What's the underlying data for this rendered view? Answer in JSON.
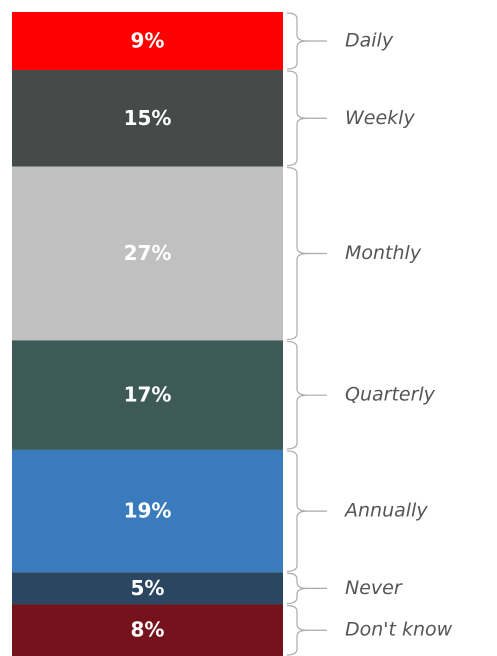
{
  "chart_data": {
    "type": "bar",
    "stacked": true,
    "categories": [
      "Daily",
      "Weekly",
      "Monthly",
      "Quarterly",
      "Annually",
      "Never",
      "Don't know"
    ],
    "values": [
      9,
      15,
      27,
      17,
      19,
      5,
      8
    ],
    "value_labels": [
      "9%",
      "15%",
      "27%",
      "17%",
      "19%",
      "5%",
      "8%"
    ],
    "colors": [
      "#ff0000",
      "#464a48",
      "#c0c0c0",
      "#3d5a57",
      "#3a7bbd",
      "#2a4661",
      "#76121c"
    ]
  }
}
